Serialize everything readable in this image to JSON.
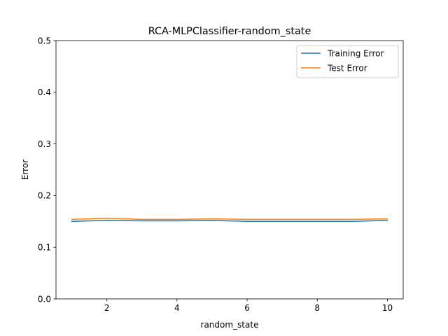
{
  "chart_data": {
    "type": "line",
    "title": "RCA-MLPClassifier-random_state",
    "xlabel": "random_state",
    "ylabel": "Error",
    "xlim": [
      0.55,
      10.45
    ],
    "ylim": [
      0.0,
      0.5
    ],
    "xticks": [
      2,
      4,
      6,
      8,
      10
    ],
    "xtick_labels": [
      "2",
      "4",
      "6",
      "8",
      "10"
    ],
    "yticks": [
      0.0,
      0.1,
      0.2,
      0.3,
      0.4,
      0.5
    ],
    "ytick_labels": [
      "0.0",
      "0.1",
      "0.2",
      "0.3",
      "0.4",
      "0.5"
    ],
    "grid": false,
    "legend_position": "top-right",
    "x": [
      1,
      2,
      3,
      4,
      5,
      6,
      7,
      8,
      9,
      10
    ],
    "series": [
      {
        "name": "Training Error",
        "color": "#1f77b4",
        "values": [
          0.15,
          0.152,
          0.151,
          0.151,
          0.152,
          0.15,
          0.15,
          0.15,
          0.15,
          0.152
        ]
      },
      {
        "name": "Test Error",
        "color": "#ff7f0e",
        "values": [
          0.154,
          0.156,
          0.154,
          0.154,
          0.155,
          0.154,
          0.154,
          0.154,
          0.154,
          0.155
        ]
      }
    ]
  }
}
